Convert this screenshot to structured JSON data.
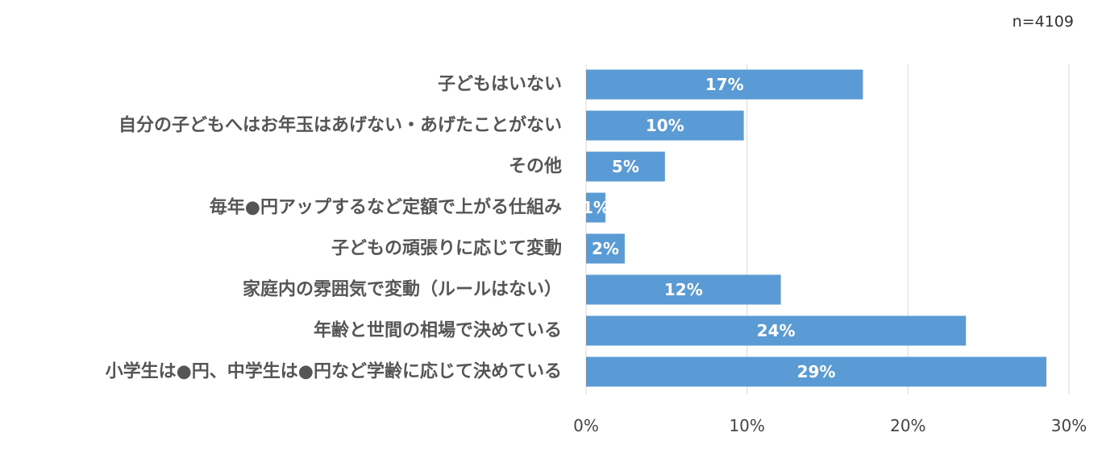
{
  "note": "n=4109",
  "chart_data": {
    "type": "bar",
    "orientation": "horizontal",
    "title": "",
    "xlabel": "",
    "ylabel": "",
    "categories": [
      "子どもはいない",
      "自分の子どもへはお年玉はあげない・あげたことがない",
      "その他",
      "毎年●円アップするなど定額で上がる仕組み",
      "子どもの頑張りに応じて変動",
      "家庭内の雰囲気で変動（ルールはない）",
      "年齢と世間の相場で決めている",
      "小学生は●円、中学生は●円など学齢に応じて決めている"
    ],
    "values": [
      17.2,
      9.8,
      4.9,
      1.2,
      2.4,
      12.1,
      23.6,
      28.6
    ],
    "value_labels": [
      "17%",
      "10%",
      "5%",
      "1%",
      "2%",
      "12%",
      "24%",
      "29%"
    ],
    "xlim": [
      0,
      30
    ],
    "xticks": [
      0,
      10,
      20,
      30
    ],
    "xtick_labels": [
      "0%",
      "10%",
      "20%",
      "30%"
    ],
    "grid": "vertical",
    "bar_color": "#5B9BD5",
    "grid_color": "#D9D9D9"
  }
}
